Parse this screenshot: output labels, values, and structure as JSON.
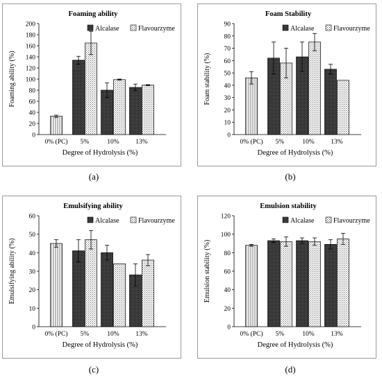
{
  "captions": [
    "(a)",
    "(b)",
    "(c)",
    "(d)"
  ],
  "chart_data": [
    {
      "type": "bar",
      "title": "Foaming ability",
      "xlabel": "Degree of Hydrolysis (%)",
      "ylabel": "Foaming ability (%)",
      "ylim": [
        0,
        200
      ],
      "yticks": [
        "0",
        "20",
        "40",
        "60",
        "80",
        "100",
        "120",
        "140",
        "160",
        "180",
        "200"
      ],
      "categories": [
        "0% (PC)",
        "5%",
        "10%",
        "13%"
      ],
      "legend_position": "top-right",
      "control": {
        "value": 33,
        "error": 2
      },
      "series": [
        {
          "name": "Alcalase",
          "values": [
            null,
            134,
            80,
            85
          ],
          "errors": [
            null,
            7,
            13,
            6
          ]
        },
        {
          "name": "Flavourzyme",
          "values": [
            null,
            165,
            99,
            89
          ],
          "errors": [
            null,
            21,
            1,
            1
          ]
        }
      ]
    },
    {
      "type": "bar",
      "title": "Foam Stability",
      "xlabel": "Degree of Hydrolysis (%)",
      "ylabel": "Foam stability (%)",
      "ylim": [
        0,
        90
      ],
      "yticks": [
        "0",
        "10",
        "20",
        "30",
        "40",
        "50",
        "60",
        "70",
        "80",
        "90"
      ],
      "categories": [
        "0% (PC)",
        "5%",
        "10%",
        "13%"
      ],
      "legend_position": "top-right",
      "control": {
        "value": 46,
        "error": 5
      },
      "series": [
        {
          "name": "Alcalase",
          "values": [
            null,
            62,
            63,
            53
          ],
          "errors": [
            null,
            13,
            12,
            4
          ]
        },
        {
          "name": "Flavourzyme",
          "values": [
            null,
            58,
            75,
            44
          ],
          "errors": [
            null,
            12,
            7,
            0
          ]
        }
      ]
    },
    {
      "type": "bar",
      "title": "Emulsifying ability",
      "xlabel": "Degree of Hydrolysis (%)",
      "ylabel": "Emulsifying ability (%)",
      "ylim": [
        0,
        60
      ],
      "yticks": [
        "0",
        "10",
        "20",
        "30",
        "40",
        "50",
        "60"
      ],
      "categories": [
        "0% (PC)",
        "5%",
        "10%",
        "13%"
      ],
      "legend_position": "top-right",
      "control": {
        "value": 45,
        "error": 2
      },
      "series": [
        {
          "name": "Alcalase",
          "values": [
            null,
            41,
            40,
            28
          ],
          "errors": [
            null,
            6,
            4,
            6
          ]
        },
        {
          "name": "Flavourzyme",
          "values": [
            null,
            47,
            34,
            36
          ],
          "errors": [
            null,
            5,
            0,
            3
          ]
        }
      ]
    },
    {
      "type": "bar",
      "title": "Emulsion stability",
      "xlabel": "Degree of Hydrolysis (%)",
      "ylabel": "Emulsion stability (%)",
      "ylim": [
        0,
        120
      ],
      "yticks": [
        "0",
        "20",
        "40",
        "60",
        "80",
        "100",
        "120"
      ],
      "categories": [
        "0% (PC)",
        "5%",
        "10%",
        "13%"
      ],
      "legend_position": "top-right",
      "control": {
        "value": 88,
        "error": 1
      },
      "series": [
        {
          "name": "Alcalase",
          "values": [
            null,
            93,
            93,
            89
          ],
          "errors": [
            null,
            2,
            3,
            5
          ]
        },
        {
          "name": "Flavourzyme",
          "values": [
            null,
            92,
            92,
            95
          ],
          "errors": [
            null,
            5,
            4,
            6
          ]
        }
      ]
    }
  ]
}
